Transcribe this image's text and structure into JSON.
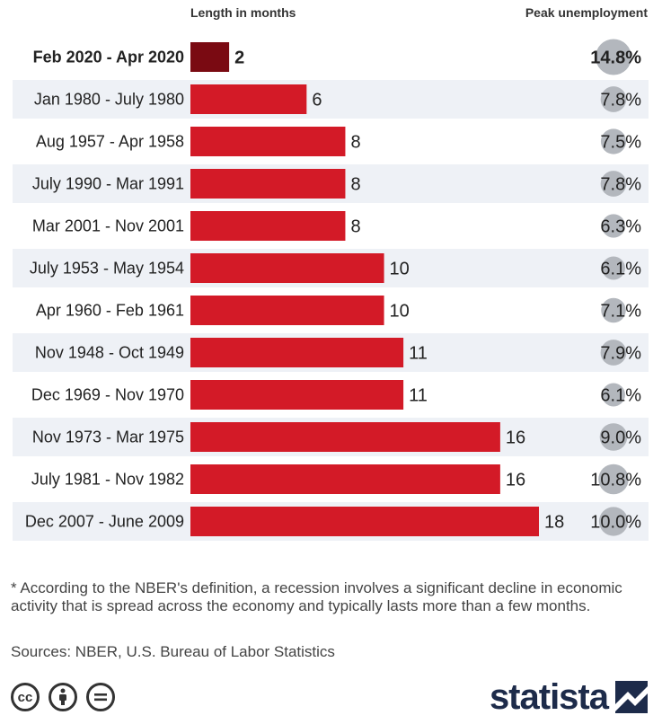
{
  "headers": {
    "length": "Length in months",
    "peak": "Peak unemployment"
  },
  "chart_data": {
    "type": "bar",
    "orientation": "horizontal",
    "categories": [
      "Feb 2020 - Apr 2020",
      "Jan 1980 - July 1980",
      "Aug 1957 - Apr 1958",
      "July 1990 - Mar 1991",
      "Mar 2001 - Nov 2001",
      "July 1953 - May 1954",
      "Apr 1960 - Feb 1961",
      "Nov 1948 - Oct 1949",
      "Dec 1969 - Nov 1970",
      "Nov 1973 - Mar 1975",
      "July 1981 - Nov 1982",
      "Dec 2007 - June 2009"
    ],
    "series": [
      {
        "name": "Length in months",
        "values": [
          2,
          6,
          8,
          8,
          8,
          10,
          10,
          11,
          11,
          16,
          16,
          18
        ]
      },
      {
        "name": "Peak unemployment",
        "values": [
          14.8,
          7.8,
          7.5,
          7.8,
          6.3,
          6.1,
          7.1,
          7.9,
          6.1,
          9.0,
          10.8,
          10.0
        ]
      }
    ],
    "peak_labels": [
      "14.8%",
      "7.8%",
      "7.5%",
      "7.8%",
      "6.3%",
      "6.1%",
      "7.1%",
      "7.9%",
      "6.1%",
      "9.0%",
      "10.8%",
      "10.0%"
    ],
    "highlight_index": 0,
    "xlim": [
      0,
      18
    ],
    "colors": {
      "bar": "#d31a27",
      "highlight": "#7a0a12",
      "row_stripe": "#eef1f6",
      "bubble": "#b3b7bd"
    }
  },
  "footnote": "* According to the NBER's definition, a recession involves a significant decline in economic activity that is spread across the economy and typically lasts more than a few months.",
  "sources": "Sources: NBER, U.S. Bureau of Labor Statistics",
  "license_icons": [
    "cc-icon",
    "person-icon",
    "equals-icon"
  ],
  "brand": "statista"
}
